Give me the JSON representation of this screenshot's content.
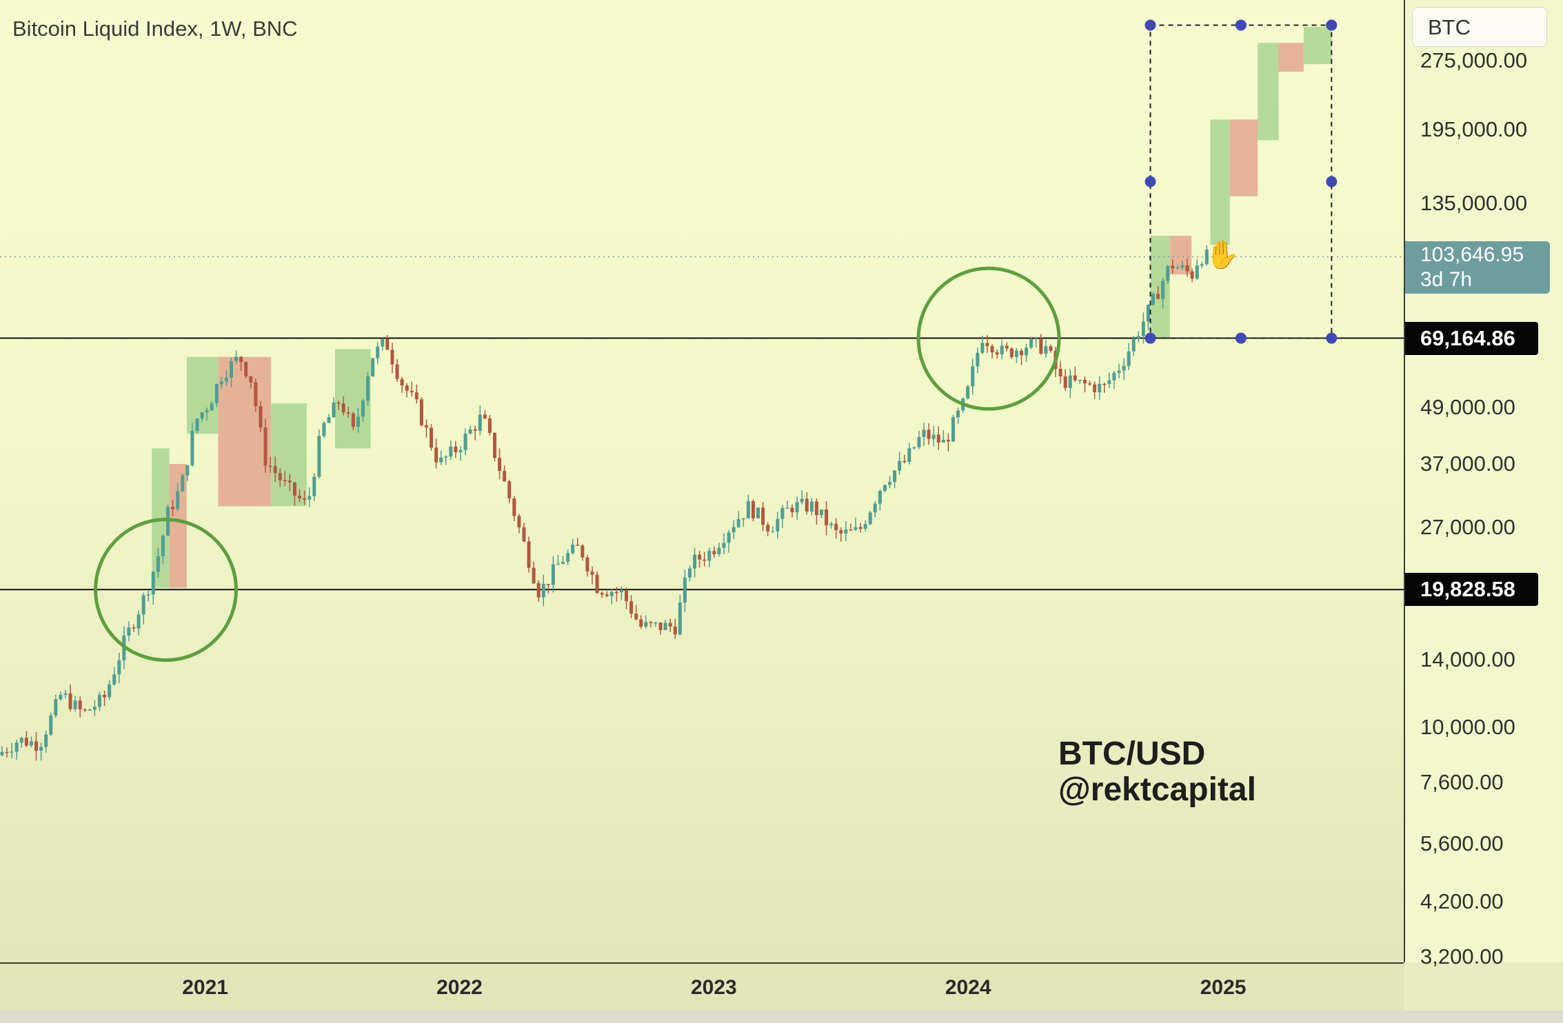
{
  "header": {
    "symbol_title": "Bitcoin Liquid Index, 1W, BNC"
  },
  "price_scale": {
    "symbol": "BTC",
    "ticks": [
      "275,000.00",
      "195,000.00",
      "135,000.00",
      "49,000.00",
      "37,000.00",
      "27,000.00",
      "14,000.00",
      "10,000.00",
      "7,600.00",
      "5,600.00",
      "4,200.00",
      "3,200.00"
    ],
    "current_price": "103,646.95",
    "countdown": "3d 7h"
  },
  "horizontal_levels": [
    "69,164.86",
    "19,828.58"
  ],
  "time_axis": {
    "years": [
      "2021",
      "2022",
      "2023",
      "2024",
      "2025"
    ]
  },
  "watermark": {
    "line1": "BTC/USD",
    "line2": "@rektcapital"
  },
  "colors": {
    "up": "#4f9e93",
    "down": "#b2573f",
    "zone_green": "#a9d490",
    "zone_red": "#e3a68d",
    "circle": "#5e9e3f",
    "handle": "#3f49b3",
    "current_badge": "#6e9d9e"
  },
  "chart_data": {
    "type": "candlestick",
    "title": "Bitcoin Liquid Index, 1W, BNC",
    "scale": "log",
    "ylim": [
      3000,
      330000
    ],
    "xlim": [
      "2020-05-01",
      "2025-10-01"
    ],
    "yticks": [
      275000,
      195000,
      135000,
      49000,
      37000,
      27000,
      14000,
      10000,
      7600,
      5600,
      4200,
      3200
    ],
    "x_tick_labels": [
      "2021",
      "2022",
      "2023",
      "2024",
      "2025"
    ],
    "horizontal_lines": [
      69164.86,
      19828.58
    ],
    "current_price": 103646.95,
    "price_path": [
      [
        "2020-05-01",
        8700
      ],
      [
        "2020-06-01",
        9400
      ],
      [
        "2020-07-01",
        9200
      ],
      [
        "2020-08-01",
        11800
      ],
      [
        "2020-09-01",
        10700
      ],
      [
        "2020-10-01",
        11500
      ],
      [
        "2020-11-01",
        15500
      ],
      [
        "2020-12-01",
        19500
      ],
      [
        "2020-12-20",
        24000
      ],
      [
        "2021-01-01",
        29000
      ],
      [
        "2021-01-20",
        33000
      ],
      [
        "2021-02-10",
        46000
      ],
      [
        "2021-03-01",
        50000
      ],
      [
        "2021-03-20",
        58000
      ],
      [
        "2021-04-14",
        63000
      ],
      [
        "2021-05-01",
        56000
      ],
      [
        "2021-05-20",
        38000
      ],
      [
        "2021-06-20",
        33000
      ],
      [
        "2021-07-20",
        30000
      ],
      [
        "2021-08-10",
        44000
      ],
      [
        "2021-09-05",
        51000
      ],
      [
        "2021-09-25",
        43000
      ],
      [
        "2021-10-20",
        63000
      ],
      [
        "2021-11-10",
        68000
      ],
      [
        "2021-12-01",
        56000
      ],
      [
        "2021-12-25",
        49000
      ],
      [
        "2022-01-25",
        37000
      ],
      [
        "2022-02-20",
        40000
      ],
      [
        "2022-03-28",
        47000
      ],
      [
        "2022-05-10",
        30000
      ],
      [
        "2022-06-18",
        19500
      ],
      [
        "2022-07-20",
        23000
      ],
      [
        "2022-08-15",
        24500
      ],
      [
        "2022-09-10",
        20000
      ],
      [
        "2022-10-15",
        19500
      ],
      [
        "2022-11-10",
        16500
      ],
      [
        "2022-12-30",
        16500
      ],
      [
        "2023-01-20",
        22500
      ],
      [
        "2023-02-20",
        24000
      ],
      [
        "2023-03-18",
        27000
      ],
      [
        "2023-04-15",
        30000
      ],
      [
        "2023-05-15",
        27000
      ],
      [
        "2023-06-15",
        30000
      ],
      [
        "2023-07-15",
        30000
      ],
      [
        "2023-08-20",
        26000
      ],
      [
        "2023-09-20",
        26500
      ],
      [
        "2023-10-25",
        34000
      ],
      [
        "2023-11-25",
        37500
      ],
      [
        "2023-12-20",
        43000
      ],
      [
        "2024-01-20",
        41000
      ],
      [
        "2024-02-20",
        51000
      ],
      [
        "2024-03-14",
        70000
      ],
      [
        "2024-04-15",
        64000
      ],
      [
        "2024-05-20",
        67000
      ],
      [
        "2024-06-15",
        66000
      ],
      [
        "2024-07-05",
        56000
      ],
      [
        "2024-08-05",
        55000
      ],
      [
        "2024-09-05",
        54000
      ],
      [
        "2024-10-01",
        61000
      ],
      [
        "2024-11-10",
        80000
      ],
      [
        "2024-12-10",
        100000
      ],
      [
        "2025-01-10",
        95000
      ],
      [
        "2025-01-20",
        104000
      ],
      [
        "2025-01-29",
        103600
      ]
    ],
    "projected_boxes": [
      {
        "type": "up",
        "x": [
          "2024-11-07",
          "2024-12-05"
        ],
        "y": [
          69164.86,
          115000
        ]
      },
      {
        "type": "down",
        "x": [
          "2024-12-05",
          "2025-01-05"
        ],
        "y": [
          95000,
          115000
        ]
      },
      {
        "type": "up",
        "x": [
          "2025-02-01",
          "2025-03-01"
        ],
        "y": [
          110000,
          205000
        ]
      },
      {
        "type": "down",
        "x": [
          "2025-03-01",
          "2025-04-10"
        ],
        "y": [
          140000,
          205000
        ]
      },
      {
        "type": "up",
        "x": [
          "2025-04-10",
          "2025-05-10"
        ],
        "y": [
          185000,
          300000
        ]
      },
      {
        "type": "down",
        "x": [
          "2025-05-10",
          "2025-06-15"
        ],
        "y": [
          260000,
          300000
        ]
      },
      {
        "type": "up",
        "x": [
          "2025-06-15",
          "2025-07-25"
        ],
        "y": [
          270000,
          325000
        ]
      }
    ],
    "historical_boxes": [
      {
        "type": "up",
        "x": [
          "2020-12-05",
          "2020-12-30"
        ],
        "y": [
          20000,
          40000
        ]
      },
      {
        "type": "down",
        "x": [
          "2020-12-30",
          "2021-01-24"
        ],
        "y": [
          20000,
          37000
        ]
      },
      {
        "type": "up",
        "x": [
          "2021-01-24",
          "2021-03-10"
        ],
        "y": [
          43000,
          63000
        ]
      },
      {
        "type": "down",
        "x": [
          "2021-03-10",
          "2021-05-25"
        ],
        "y": [
          30000,
          63000
        ]
      },
      {
        "type": "up",
        "x": [
          "2021-05-25",
          "2021-07-15"
        ],
        "y": [
          30000,
          50000
        ]
      },
      {
        "type": "up",
        "x": [
          "2021-08-25",
          "2021-10-15"
        ],
        "y": [
          40000,
          65500
        ]
      }
    ],
    "circles": [
      {
        "date": "2020-12-25",
        "price": 19800
      },
      {
        "date": "2024-03-20",
        "price": 69000
      }
    ],
    "measure_box": {
      "x": [
        "2024-11-07",
        "2025-07-25"
      ],
      "y": [
        69164.86,
        330000
      ]
    }
  }
}
